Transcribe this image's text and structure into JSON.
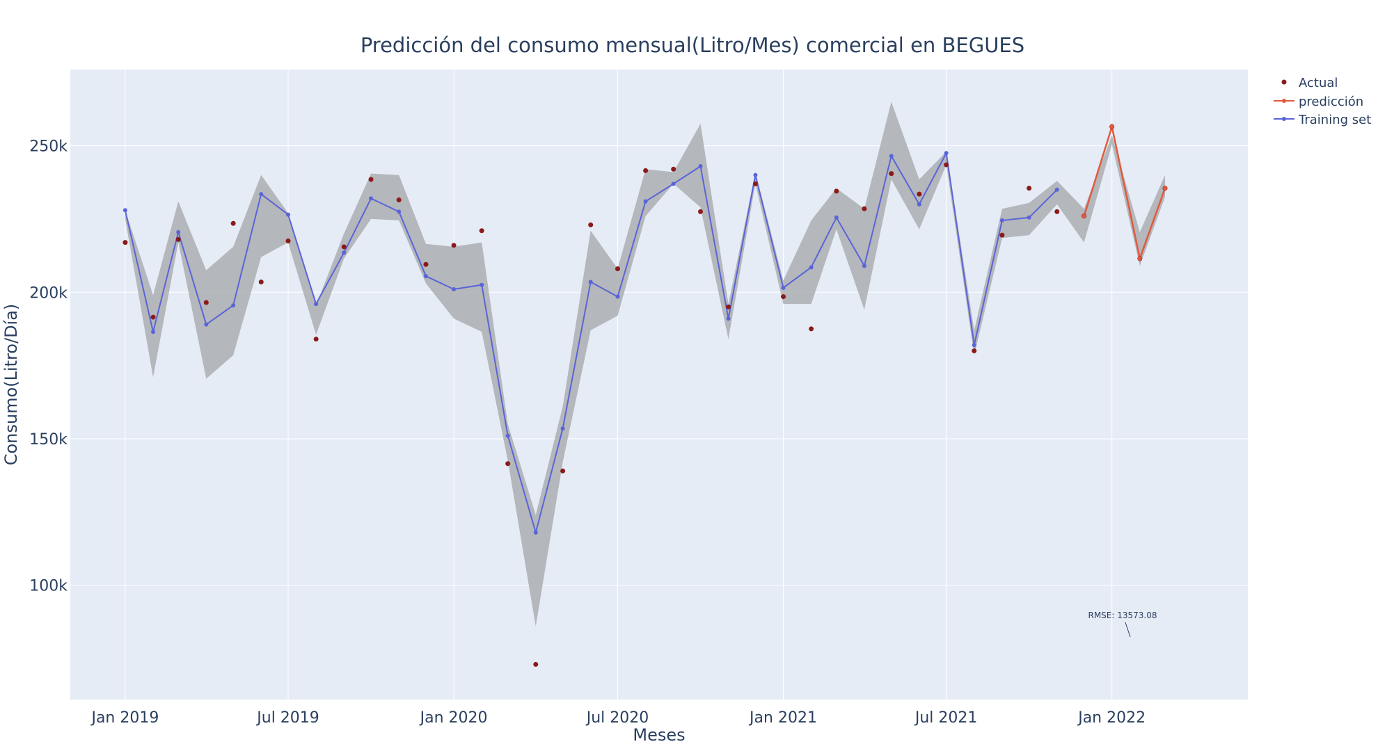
{
  "chart_data": {
    "type": "line",
    "title": "Predicción del consumo mensual(Litro/Mes) comercial en BEGUES",
    "xlabel": "Meses",
    "ylabel": "Consumo(Litro/Día)",
    "x_ticks": [
      "Jan 2019",
      "Jul 2019",
      "Jan 2020",
      "Jul 2020",
      "Jan 2021",
      "Jul 2021",
      "Jan 2022"
    ],
    "y_ticks": [
      "100k",
      "150k",
      "200k",
      "250k"
    ],
    "y_tick_values": [
      100000,
      150000,
      200000,
      250000
    ],
    "xlim": [
      "2018-11-01",
      "2022-06-01"
    ],
    "ylim": [
      61000,
      276000
    ],
    "grid": true,
    "legend_position": "top-right",
    "months": [
      "2019-01",
      "2019-02",
      "2019-03",
      "2019-04",
      "2019-05",
      "2019-06",
      "2019-07",
      "2019-08",
      "2019-09",
      "2019-10",
      "2019-11",
      "2019-12",
      "2020-01",
      "2020-02",
      "2020-03",
      "2020-04",
      "2020-05",
      "2020-06",
      "2020-07",
      "2020-08",
      "2020-09",
      "2020-10",
      "2020-11",
      "2020-12",
      "2021-01",
      "2021-02",
      "2021-03",
      "2021-04",
      "2021-05",
      "2021-06",
      "2021-07",
      "2021-08",
      "2021-09",
      "2021-10",
      "2021-11",
      "2021-12",
      "2022-01",
      "2022-02",
      "2022-03"
    ],
    "series": [
      {
        "name": "Actual",
        "mode": "markers",
        "color": "#8b1a1a",
        "values": [
          217000,
          191500,
          218000,
          196500,
          223500,
          203500,
          217500,
          184000,
          215500,
          238500,
          231500,
          209500,
          216000,
          221000,
          141500,
          73000,
          139000,
          223000,
          208000,
          241500,
          242000,
          227500,
          195000,
          237000,
          198500,
          187500,
          234500,
          228500,
          240500,
          233500,
          243500,
          180000,
          219500,
          235500,
          227500,
          226000,
          256500,
          211500,
          235500
        ]
      },
      {
        "name": "predicción",
        "mode": "lines+markers",
        "color": "#e05a3e",
        "months": [
          "2021-12",
          "2022-01",
          "2022-02",
          "2022-03"
        ],
        "values": [
          226000,
          256500,
          211500,
          235500
        ]
      },
      {
        "name": "Training set",
        "mode": "lines+markers",
        "color": "#5a64d8",
        "months": [
          "2019-01",
          "2019-02",
          "2019-03",
          "2019-04",
          "2019-05",
          "2019-06",
          "2019-07",
          "2019-08",
          "2019-09",
          "2019-10",
          "2019-11",
          "2019-12",
          "2020-01",
          "2020-02",
          "2020-03",
          "2020-04",
          "2020-05",
          "2020-06",
          "2020-07",
          "2020-08",
          "2020-09",
          "2020-10",
          "2020-11",
          "2020-12",
          "2021-01",
          "2021-02",
          "2021-03",
          "2021-04",
          "2021-05",
          "2021-06",
          "2021-07",
          "2021-08",
          "2021-09",
          "2021-10",
          "2021-11"
        ],
        "values": [
          228000,
          186500,
          220500,
          189000,
          195500,
          233500,
          226500,
          196000,
          213500,
          232000,
          227500,
          205500,
          201000,
          202500,
          151000,
          118000,
          153500,
          203500,
          198500,
          231000,
          237000,
          243000,
          191000,
          240000,
          201500,
          208500,
          225500,
          209000,
          246500,
          230000,
          247500,
          182000,
          224500,
          225500,
          235000
        ]
      }
    ],
    "band": {
      "color": "#a8aaad",
      "upper": [
        228000,
        199000,
        231000,
        207500,
        215500,
        240000,
        227000,
        195500,
        220000,
        240500,
        240000,
        216500,
        215500,
        217000,
        155000,
        124000,
        161000,
        221000,
        208000,
        242000,
        241000,
        257500,
        196000,
        241000,
        204000,
        224500,
        235500,
        228500,
        265000,
        238500,
        248000,
        187000,
        228500,
        230500,
        238000,
        228500,
        253500,
        220500,
        240000
      ],
      "lower": [
        225000,
        171000,
        217000,
        170500,
        178500,
        212000,
        217000,
        185500,
        211500,
        225000,
        224500,
        203000,
        191000,
        186500,
        142500,
        86000,
        142000,
        187000,
        192000,
        226000,
        237000,
        229000,
        184000,
        237000,
        196000,
        196000,
        221500,
        194000,
        238500,
        221500,
        243500,
        178500,
        218500,
        219500,
        230000,
        217000,
        250500,
        209000,
        232500
      ]
    },
    "annotation": "RMSE: 13573.08"
  }
}
